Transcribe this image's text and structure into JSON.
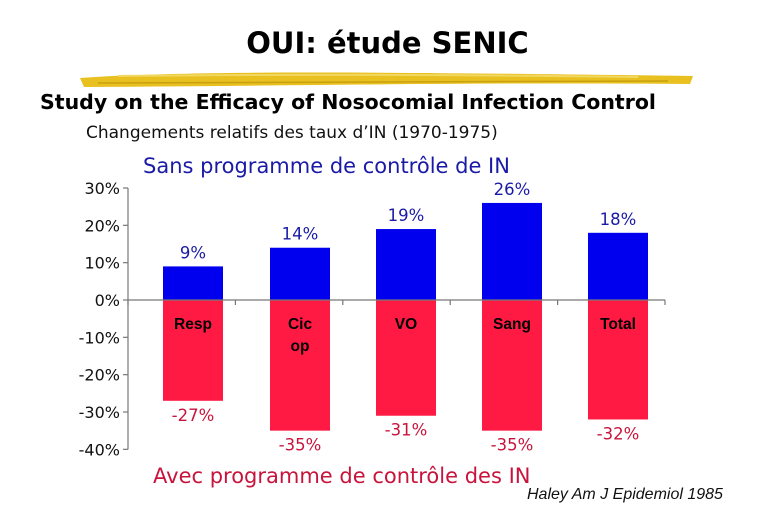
{
  "header": {
    "title": "OUI: étude SENIC",
    "subtitle": "Study on the Efficacy of Nosocomial Infection Control",
    "caption": "Changements relatifs des taux d’IN (1970-1975)",
    "top_series_label": "Sans programme de contrôle de IN",
    "bottom_series_label": "Avec programme de contrôle des IN",
    "source": "Haley Am J Epidemiol 1985"
  },
  "colors": {
    "positive": "#0000ee",
    "negative": "#ff1a44",
    "positive_text": "#1a1aa6",
    "negative_text": "#c8143c",
    "brush": "#e8c020"
  },
  "chart_data": {
    "type": "bar",
    "categories": [
      "Resp",
      "Cic op",
      "VO",
      "Sang",
      "Total"
    ],
    "series": [
      {
        "values": [
          9,
          14,
          19,
          26,
          18
        ],
        "labels": [
          "9%",
          "14%",
          "19%",
          "26%",
          "18%"
        ]
      },
      {
        "values": [
          -27,
          -35,
          -31,
          -35,
          -32
        ],
        "labels": [
          "-27%",
          "-35%",
          "-31%",
          "-35%",
          "-32%"
        ]
      }
    ],
    "ylim": [
      -40,
      30
    ],
    "yticks": [
      30,
      20,
      10,
      0,
      -10,
      -20,
      -30,
      -40
    ],
    "ytick_labels": [
      "30%",
      "20%",
      "10%",
      "0%",
      "-10%",
      "-20%",
      "-30%",
      "-40%"
    ],
    "category_labels_lines": [
      [
        "Resp"
      ],
      [
        "Cic",
        "op"
      ],
      [
        "VO"
      ],
      [
        "Sang"
      ],
      [
        "Total"
      ]
    ],
    "grid": false,
    "legend": "none"
  }
}
